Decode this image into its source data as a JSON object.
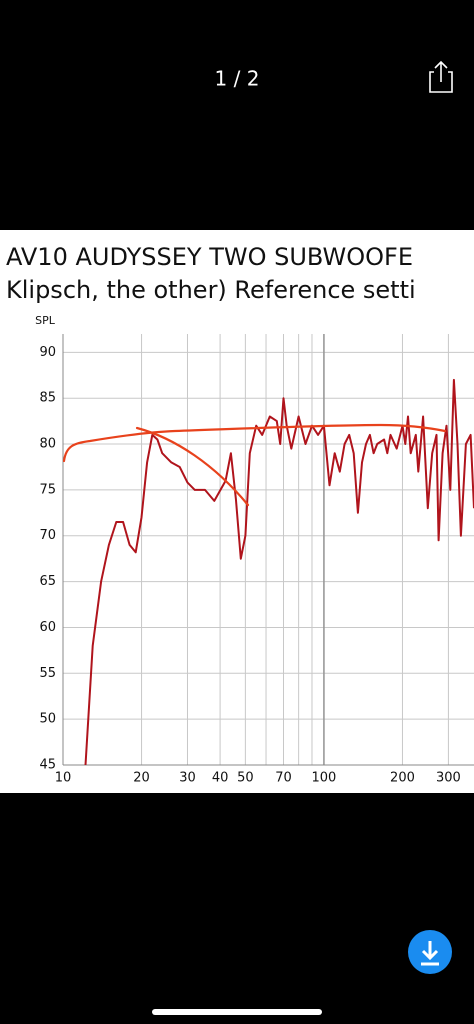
{
  "viewer": {
    "counter": "1 / 2"
  },
  "image": {
    "title_lines": [
      "AV10 AUDYSSEY TWO SUBWOOFE",
      "Klipsch, the other) Reference setti"
    ]
  },
  "chart_data": {
    "type": "line",
    "ylabel": "SPL",
    "x": [
      12.2,
      13,
      14,
      15,
      16,
      17,
      18,
      19,
      20,
      21,
      22,
      23,
      24,
      26,
      28,
      30,
      32,
      35,
      38,
      42,
      44,
      46,
      48,
      50,
      52,
      55,
      58,
      62,
      66,
      68,
      70,
      72,
      75,
      80,
      85,
      90,
      95,
      100,
      105,
      110,
      115,
      120,
      125,
      130,
      135,
      140,
      145,
      150,
      155,
      160,
      170,
      175,
      180,
      190,
      200,
      205,
      210,
      215,
      225,
      230,
      240,
      250,
      260,
      270,
      275,
      285,
      295,
      305,
      315,
      325,
      335,
      350,
      365,
      376
    ],
    "values": [
      45,
      58,
      65,
      69,
      71.5,
      71.5,
      69,
      68.2,
      72,
      78,
      81,
      80.5,
      79,
      78,
      77.5,
      75.8,
      75,
      75,
      73.8,
      76,
      79,
      74,
      67.5,
      70,
      79,
      82,
      81,
      83,
      82.5,
      80,
      85,
      82,
      79.5,
      83,
      80,
      82,
      81,
      82,
      75.5,
      79,
      77,
      80,
      81,
      79,
      72.5,
      78,
      80,
      81,
      79,
      80,
      80.5,
      79,
      81,
      79.5,
      82,
      80,
      83,
      79,
      81,
      77,
      83,
      73,
      79,
      81,
      69.5,
      79,
      82,
      75,
      87,
      80,
      70,
      80,
      81,
      73
    ],
    "color": "#b0141c",
    "log_x": true,
    "xlim": [
      10,
      376
    ],
    "xticks": [
      10,
      20,
      30,
      40,
      50,
      70,
      100,
      200,
      300
    ],
    "x_minor_ticks": [
      60,
      80,
      90
    ],
    "ylim": [
      45,
      92
    ],
    "yticks": [
      45,
      50,
      55,
      60,
      65,
      70,
      75,
      80,
      85,
      90
    ],
    "grid": true
  }
}
